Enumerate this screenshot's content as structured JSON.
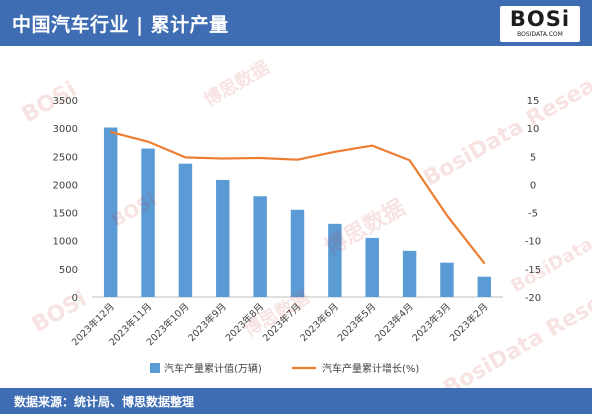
{
  "header": {
    "title": "中国汽车行业 | 累计产量"
  },
  "logo": {
    "main": "BOSi",
    "sub": "BOSIDATA.COM"
  },
  "footer": {
    "source": "数据来源：统计局、博思数据整理"
  },
  "watermark": {
    "brand": "BOSi",
    "cn": "博思数据",
    "en": "BosiData Research"
  },
  "chart_data": {
    "type": "bar",
    "categories": [
      "2023年12月",
      "2023年11月",
      "2023年10月",
      "2023年9月",
      "2023年8月",
      "2023年7月",
      "2023年6月",
      "2023年5月",
      "2023年4月",
      "2023年3月",
      "2023年2月"
    ],
    "series": [
      {
        "name": "汽车产量累计值(万辆)",
        "type": "bar",
        "axis": "left",
        "color": "#5b9bd5",
        "values": [
          3011,
          2637,
          2369,
          2080,
          1790,
          1550,
          1300,
          1050,
          820,
          610,
          360
        ]
      },
      {
        "name": "汽车产量累计增长(%)",
        "type": "line",
        "axis": "right",
        "color": "#ed7d31",
        "values": [
          9.3,
          7.6,
          4.8,
          4.6,
          4.7,
          4.4,
          5.8,
          6.9,
          4.3,
          -5.5,
          -14.0
        ]
      }
    ],
    "left_axis": {
      "min": 0,
      "max": 3500,
      "step": 500,
      "ticks": [
        "0",
        "500",
        "1000",
        "1500",
        "2000",
        "2500",
        "3000",
        "3500"
      ]
    },
    "right_axis": {
      "min": -20,
      "max": 15,
      "step": 5,
      "ticks": [
        "-20",
        "-15",
        "-10",
        "-5",
        "0",
        "5",
        "10",
        "15"
      ]
    },
    "grid": false,
    "legend_position": "bottom"
  }
}
